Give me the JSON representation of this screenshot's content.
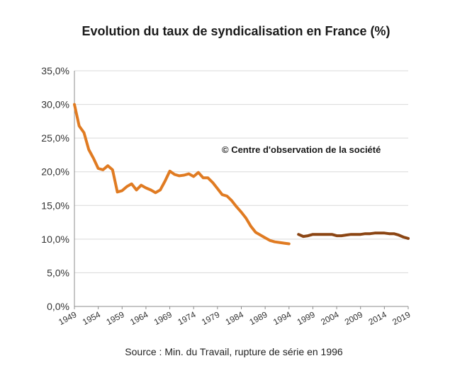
{
  "chart_data": {
    "type": "line",
    "title": "Evolution du taux de syndicalisation en France (%)",
    "annotation": "© Centre d'observation de la société",
    "source": "Source : Min. du Travail, rupture de série en 1996",
    "y_tick_labels": [
      "0,0%",
      "5,0%",
      "10,0%",
      "15,0%",
      "20,0%",
      "25,0%",
      "30,0%",
      "35,0%"
    ],
    "x_tick_labels": [
      "1949",
      "1954",
      "1959",
      "1964",
      "1969",
      "1974",
      "1979",
      "1984",
      "1989",
      "1994",
      "1999",
      "2004",
      "2009",
      "2014",
      "2019"
    ],
    "ylim": [
      0,
      35
    ],
    "xlim": [
      1949,
      2019
    ],
    "grid": true,
    "series": [
      {
        "color": "#e07b22",
        "x": [
          1949,
          1950,
          1951,
          1952,
          1953,
          1954,
          1955,
          1956,
          1957,
          1958,
          1959,
          1960,
          1961,
          1962,
          1963,
          1964,
          1965,
          1966,
          1967,
          1968,
          1969,
          1970,
          1971,
          1972,
          1973,
          1974,
          1975,
          1976,
          1977,
          1978,
          1979,
          1980,
          1981,
          1982,
          1983,
          1984,
          1985,
          1986,
          1987,
          1988,
          1989,
          1990,
          1991,
          1992,
          1993,
          1994
        ],
        "values": [
          30.0,
          26.8,
          25.8,
          23.3,
          22.0,
          20.5,
          20.3,
          20.9,
          20.3,
          17.0,
          17.2,
          17.8,
          18.2,
          17.3,
          18.0,
          17.6,
          17.3,
          16.9,
          17.3,
          18.6,
          20.1,
          19.6,
          19.4,
          19.5,
          19.7,
          19.3,
          19.9,
          19.1,
          19.1,
          18.4,
          17.5,
          16.6,
          16.4,
          15.7,
          14.8,
          14.0,
          13.1,
          11.9,
          11.0,
          10.6,
          10.2,
          9.8,
          9.6,
          9.5,
          9.4,
          9.3
        ]
      },
      {
        "color": "#8b4513",
        "x": [
          1996,
          1997,
          1998,
          1999,
          2000,
          2001,
          2002,
          2003,
          2004,
          2005,
          2006,
          2007,
          2008,
          2009,
          2010,
          2011,
          2012,
          2013,
          2014,
          2015,
          2016,
          2017,
          2018,
          2019
        ],
        "values": [
          10.7,
          10.4,
          10.5,
          10.7,
          10.7,
          10.7,
          10.7,
          10.7,
          10.5,
          10.5,
          10.6,
          10.7,
          10.7,
          10.7,
          10.8,
          10.8,
          10.9,
          10.9,
          10.9,
          10.8,
          10.8,
          10.6,
          10.3,
          10.1
        ]
      }
    ]
  }
}
